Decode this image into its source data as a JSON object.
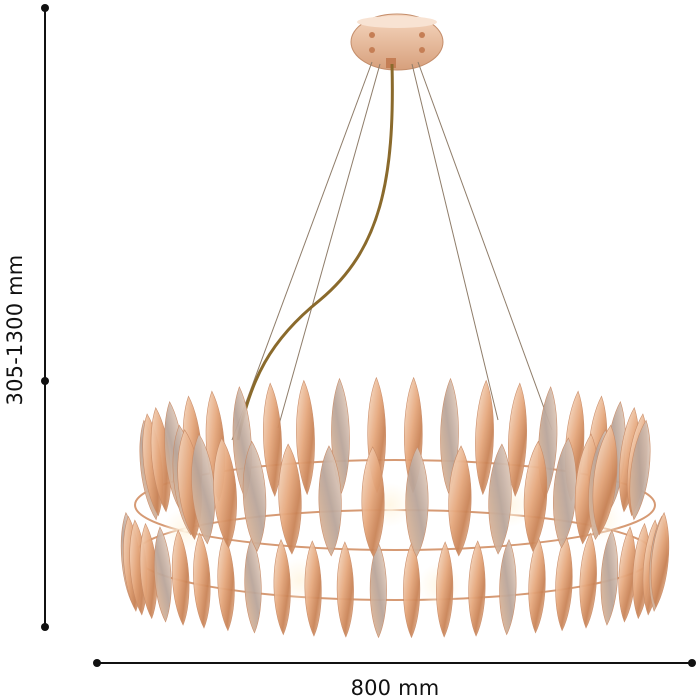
{
  "dimensions": {
    "height_label": "305-1300 mm",
    "width_label": "800 mm"
  },
  "product": {
    "type": "crystal pendant chandelier",
    "frame_color": "#d9a27a",
    "crystal_color": "#e8b48e",
    "cord_color": "#8a6a2c"
  }
}
